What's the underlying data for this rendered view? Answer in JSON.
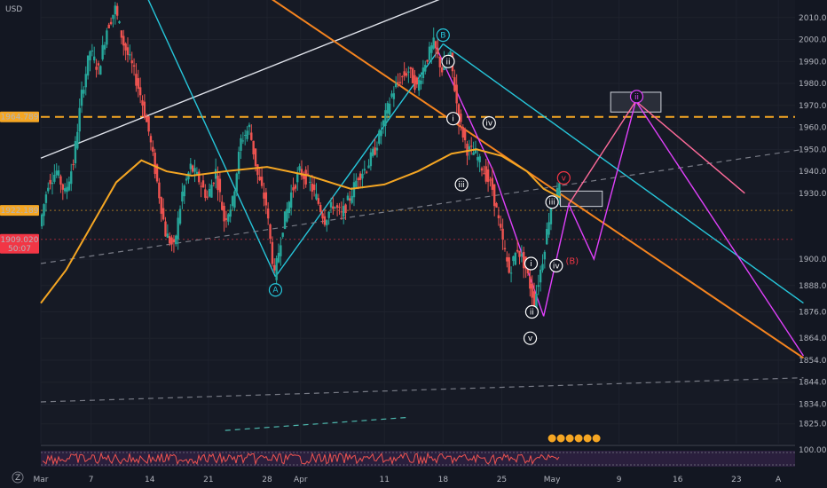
{
  "chart_data": {
    "type": "line",
    "currency": "USD",
    "y_ticks": [
      2010,
      2000,
      1990,
      1980,
      1970,
      1960,
      1950,
      1940,
      1930,
      1900,
      1888,
      1876,
      1864,
      1854,
      1844,
      1834,
      1825
    ],
    "ylim": [
      1816,
      2018
    ],
    "x_ticks": [
      {
        "label": "Mar",
        "day": 0
      },
      {
        "label": "7",
        "day": 6
      },
      {
        "label": "14",
        "day": 13
      },
      {
        "label": "21",
        "day": 20
      },
      {
        "label": "28",
        "day": 27
      },
      {
        "label": "Apr",
        "day": 31
      },
      {
        "label": "11",
        "day": 41
      },
      {
        "label": "18",
        "day": 48
      },
      {
        "label": "25",
        "day": 55
      },
      {
        "label": "May",
        "day": 61
      },
      {
        "label": "9",
        "day": 69
      },
      {
        "label": "16",
        "day": 76
      },
      {
        "label": "23",
        "day": 83
      },
      {
        "label": "A",
        "day": 88
      }
    ],
    "xlim": [
      0,
      90
    ],
    "price_labels": [
      {
        "text": "1964.789",
        "value": 1964.789,
        "color": "#f5a623",
        "line": "dashed-orange"
      },
      {
        "text": "1922.189",
        "value": 1922.189,
        "color": "#f5a623",
        "line": "dotted-orange"
      },
      {
        "text": "1909.020",
        "value": 1909.02,
        "countdown": "50:07",
        "color": "#f23645",
        "line": "dotted-red"
      }
    ],
    "price_path": [
      [
        0,
        1915
      ],
      [
        1,
        1935
      ],
      [
        2,
        1940
      ],
      [
        3,
        1930
      ],
      [
        4,
        1944
      ],
      [
        5,
        1975
      ],
      [
        6,
        1995
      ],
      [
        7,
        1986
      ],
      [
        8,
        2005
      ],
      [
        9,
        2014
      ],
      [
        10,
        1998
      ],
      [
        11,
        1988
      ],
      [
        12,
        1975
      ],
      [
        13,
        1958
      ],
      [
        14,
        1935
      ],
      [
        15,
        1912
      ],
      [
        16,
        1905
      ],
      [
        17,
        1930
      ],
      [
        18,
        1942
      ],
      [
        19,
        1936
      ],
      [
        20,
        1928
      ],
      [
        21,
        1940
      ],
      [
        22,
        1918
      ],
      [
        23,
        1926
      ],
      [
        24,
        1954
      ],
      [
        25,
        1960
      ],
      [
        26,
        1938
      ],
      [
        27,
        1925
      ],
      [
        28,
        1892
      ],
      [
        29,
        1915
      ],
      [
        30,
        1930
      ],
      [
        31,
        1940
      ],
      [
        32,
        1936
      ],
      [
        33,
        1928
      ],
      [
        34,
        1918
      ],
      [
        35,
        1925
      ],
      [
        36,
        1920
      ],
      [
        37,
        1928
      ],
      [
        38,
        1938
      ],
      [
        39,
        1942
      ],
      [
        40,
        1950
      ],
      [
        41,
        1962
      ],
      [
        42,
        1975
      ],
      [
        43,
        1982
      ],
      [
        44,
        1986
      ],
      [
        45,
        1978
      ],
      [
        46,
        1990
      ],
      [
        47,
        1998
      ],
      [
        48,
        1986
      ],
      [
        49,
        1992
      ],
      [
        50,
        1964
      ],
      [
        51,
        1950
      ],
      [
        52,
        1948
      ],
      [
        53,
        1940
      ],
      [
        54,
        1932
      ],
      [
        55,
        1912
      ],
      [
        56,
        1894
      ],
      [
        57,
        1905
      ],
      [
        58,
        1896
      ],
      [
        59,
        1880
      ],
      [
        60,
        1900
      ],
      [
        61,
        1925
      ],
      [
        62,
        1932
      ]
    ],
    "ma_orange": [
      [
        0,
        1880
      ],
      [
        3,
        1895
      ],
      [
        6,
        1915
      ],
      [
        9,
        1935
      ],
      [
        12,
        1945
      ],
      [
        15,
        1940
      ],
      [
        18,
        1938
      ],
      [
        22,
        1940
      ],
      [
        27,
        1942
      ],
      [
        32,
        1938
      ],
      [
        37,
        1932
      ],
      [
        41,
        1934
      ],
      [
        45,
        1940
      ],
      [
        49,
        1948
      ],
      [
        52,
        1950
      ],
      [
        55,
        1947
      ],
      [
        58,
        1940
      ],
      [
        60,
        1932
      ],
      [
        62,
        1928
      ]
    ],
    "lines": [
      {
        "name": "white-trend",
        "color": "#e0e3eb",
        "points": [
          [
            0,
            1946
          ],
          [
            52,
            2025
          ]
        ]
      },
      {
        "name": "orange-trend",
        "color": "#f5841f",
        "points": [
          [
            25,
            2025
          ],
          [
            91,
            1855
          ]
        ]
      },
      {
        "name": "cyan-A",
        "color": "#26c6da",
        "points": [
          [
            12,
            2025
          ],
          [
            28,
            1892
          ]
        ]
      },
      {
        "name": "cyan-B",
        "color": "#26c6da",
        "points": [
          [
            28,
            1892
          ],
          [
            48,
            1998
          ]
        ]
      },
      {
        "name": "cyan-down",
        "color": "#26c6da",
        "points": [
          [
            48,
            1998
          ],
          [
            91,
            1880
          ]
        ]
      },
      {
        "name": "grey-dashed-1",
        "color": "#787b86",
        "points": [
          [
            0,
            1898
          ],
          [
            91,
            1950
          ]
        ]
      },
      {
        "name": "grey-dashed-2",
        "color": "#787b86",
        "points": [
          [
            0,
            1835
          ],
          [
            91,
            1846
          ]
        ]
      },
      {
        "name": "teal-dashed",
        "color": "#4db6ac",
        "points": [
          [
            22,
            1822
          ],
          [
            44,
            1828
          ]
        ]
      },
      {
        "name": "magenta-proj-up",
        "color": "#e040fb",
        "points": [
          [
            60,
            1874
          ],
          [
            63,
            1925
          ],
          [
            66,
            1900
          ],
          [
            71,
            1972
          ]
        ]
      },
      {
        "name": "magenta-proj-down",
        "color": "#e040fb",
        "points": [
          [
            71,
            1972
          ],
          [
            91,
            1856
          ]
        ]
      },
      {
        "name": "magenta-wave",
        "color": "#e040fb",
        "points": [
          [
            47,
            1998
          ],
          [
            54,
            1940
          ],
          [
            60,
            1874
          ]
        ]
      },
      {
        "name": "pink-upper",
        "color": "#ff6b9a",
        "points": [
          [
            63,
            1925
          ],
          [
            71,
            1972
          ],
          [
            84,
            1930
          ]
        ]
      }
    ],
    "zones": [
      {
        "x0": 68,
        "x1": 74,
        "y0": 1967,
        "y1": 1976
      },
      {
        "x0": 62,
        "x1": 67,
        "y0": 1924,
        "y1": 1931
      }
    ],
    "wave_labels": [
      {
        "text": "A",
        "day": 28,
        "value": 1886,
        "style": "cyan"
      },
      {
        "text": "B",
        "day": 48,
        "value": 2002,
        "style": "cyan"
      },
      {
        "text": "ii",
        "day": 48.6,
        "value": 1990,
        "style": "white"
      },
      {
        "text": "i",
        "day": 49.2,
        "value": 1964,
        "style": "white"
      },
      {
        "text": "iii",
        "day": 50.2,
        "value": 1934,
        "style": "white"
      },
      {
        "text": "iv",
        "day": 53.5,
        "value": 1962,
        "style": "white"
      },
      {
        "text": "i",
        "day": 58.5,
        "value": 1898,
        "style": "white"
      },
      {
        "text": "ii",
        "day": 58.6,
        "value": 1876,
        "style": "white"
      },
      {
        "text": "iii",
        "day": 61,
        "value": 1926,
        "style": "white"
      },
      {
        "text": "iv",
        "day": 61.5,
        "value": 1897,
        "style": "white"
      },
      {
        "text": "v",
        "day": 58.4,
        "value": 1864,
        "style": "white"
      },
      {
        "text": "v",
        "day": 62.4,
        "value": 1937,
        "style": "red"
      },
      {
        "text": "(B)",
        "day": 63.4,
        "value": 1899,
        "style": "red-text"
      },
      {
        "text": "ii",
        "day": 71.1,
        "value": 1974,
        "style": "magenta"
      }
    ],
    "indicator": {
      "label": "100.00"
    }
  }
}
